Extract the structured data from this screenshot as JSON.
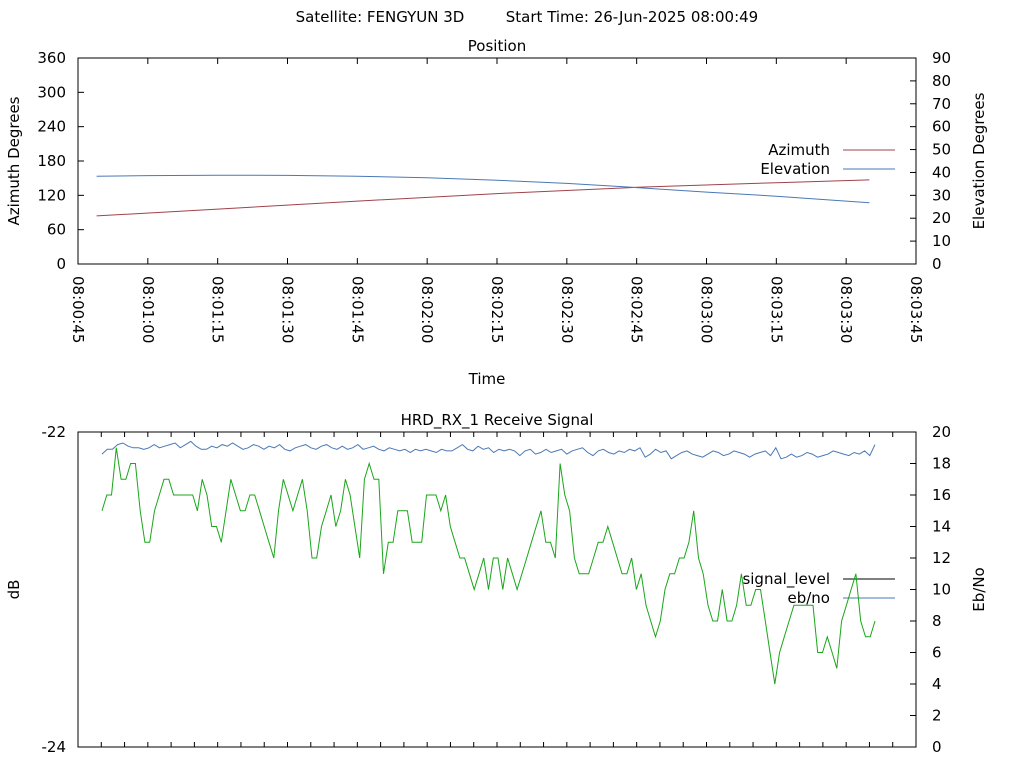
{
  "header": {
    "satellite": "Satellite: FENGYUN 3D",
    "start_time": "Start Time: 26-Jun-2025 08:00:49"
  },
  "chart_data": [
    {
      "type": "line",
      "title": "Position",
      "xlabel": "Time",
      "ylabel": "Azimuth Degrees",
      "y2label": "Elevation Degrees",
      "x_ticks": [
        "08:00:45",
        "08:01:00",
        "08:01:15",
        "08:01:30",
        "08:01:45",
        "08:02:00",
        "08:02:15",
        "08:02:30",
        "08:02:45",
        "08:03:00",
        "08:03:15",
        "08:03:30",
        "08:03:45"
      ],
      "x_range": [
        "08:00:45",
        "08:03:45"
      ],
      "ylim": [
        0,
        360
      ],
      "y_ticks": [
        0,
        60,
        120,
        180,
        240,
        300,
        360
      ],
      "y2lim": [
        0,
        90
      ],
      "y2_ticks": [
        0,
        10,
        20,
        30,
        40,
        50,
        60,
        70,
        80,
        90
      ],
      "legend_position": "right",
      "series": [
        {
          "name": "Azimuth",
          "axis": "left",
          "color": "#a0424b",
          "x": [
            "08:00:49",
            "08:01:15",
            "08:01:45",
            "08:02:15",
            "08:02:45",
            "08:03:15",
            "08:03:35"
          ],
          "values": [
            84,
            96,
            110,
            123,
            134,
            142,
            147
          ]
        },
        {
          "name": "Elevation",
          "axis": "right",
          "color": "#4a78b6",
          "x": [
            "08:00:49",
            "08:01:00",
            "08:01:15",
            "08:01:30",
            "08:01:45",
            "08:02:00",
            "08:02:15",
            "08:02:30",
            "08:02:45",
            "08:03:00",
            "08:03:15",
            "08:03:35"
          ],
          "values": [
            38.3,
            38.6,
            38.8,
            38.7,
            38.3,
            37.7,
            36.6,
            35.2,
            33.4,
            31.4,
            29.6,
            26.8
          ]
        }
      ]
    },
    {
      "type": "line",
      "title": "HRD_RX_1 Receive Signal",
      "ylabel": "dB",
      "y2label": "Eb/No",
      "ylim": [
        -24,
        -22
      ],
      "y_ticks": [
        -24,
        -22
      ],
      "y2lim": [
        0,
        20
      ],
      "y2_ticks": [
        0,
        2,
        4,
        6,
        8,
        10,
        12,
        14,
        16,
        18,
        20
      ],
      "x_minor_ticks": 36,
      "legend_position": "right",
      "series": [
        {
          "name": "signal_level",
          "axis": "left",
          "color": "#000000",
          "legend_only": true,
          "values": []
        },
        {
          "name": "eb/no",
          "axis": "right",
          "color": "#4a78b6",
          "values": [
            18.6,
            18.9,
            18.9,
            19.2,
            19.3,
            19.1,
            19.0,
            19.0,
            18.9,
            19.0,
            19.2,
            19.0,
            19.1,
            19.2,
            19.3,
            19.0,
            19.2,
            19.4,
            19.1,
            18.9,
            18.9,
            19.1,
            19.0,
            19.2,
            19.1,
            19.3,
            19.1,
            18.9,
            19.0,
            19.2,
            19.1,
            18.9,
            19.1,
            19.0,
            19.2,
            18.9,
            18.8,
            19.0,
            19.1,
            19.2,
            19.0,
            18.9,
            19.1,
            19.2,
            19.0,
            18.9,
            19.1,
            18.9,
            19.0,
            19.2,
            18.9,
            19.0,
            19.1,
            18.9,
            18.8,
            19.0,
            18.9,
            18.8,
            18.9,
            18.7,
            18.9,
            18.8,
            18.9,
            18.8,
            18.7,
            18.9,
            18.8,
            18.8,
            19.0,
            19.2,
            18.9,
            18.8,
            19.1,
            18.9,
            19.0,
            18.7,
            18.9,
            18.8,
            18.9,
            18.8,
            18.5,
            18.8,
            18.9,
            18.6,
            18.7,
            18.9,
            18.7,
            18.8,
            18.9,
            18.6,
            18.8,
            18.9,
            19.0,
            18.7,
            18.5,
            18.8,
            18.9,
            18.7,
            18.6,
            18.8,
            18.7,
            18.9,
            18.8,
            19.0,
            18.4,
            18.6,
            18.9,
            18.7,
            18.8,
            18.3,
            18.5,
            18.7,
            18.8,
            18.6,
            18.5,
            18.4,
            18.6,
            18.8,
            18.7,
            18.5,
            18.6,
            18.8,
            18.7,
            18.6,
            18.4,
            18.6,
            18.7,
            18.8,
            18.5,
            19.0,
            18.3,
            18.4,
            18.6,
            18.4,
            18.5,
            18.7,
            18.6,
            18.4,
            18.5,
            18.6,
            18.8,
            18.7,
            18.6,
            18.5,
            18.7,
            18.6,
            18.8,
            18.5,
            19.2
          ]
        },
        {
          "name": "",
          "axis": "right",
          "color": "#1aa61a",
          "values": [
            15,
            16,
            16,
            19,
            17,
            17,
            18,
            18,
            15,
            13,
            13,
            15,
            16,
            17,
            17,
            16,
            16,
            16,
            16,
            16,
            15,
            17,
            16,
            14,
            14,
            13,
            15,
            17,
            16,
            15,
            15,
            16,
            16,
            15,
            14,
            13,
            12,
            15,
            17,
            16,
            15,
            16,
            17,
            15,
            12,
            12,
            14,
            15,
            16,
            14,
            15,
            17,
            16,
            14,
            12,
            17,
            18,
            17,
            17,
            11,
            13,
            13,
            15,
            15,
            15,
            13,
            13,
            13,
            16,
            16,
            16,
            15,
            16,
            14,
            13,
            12,
            12,
            11,
            10,
            11,
            12,
            10,
            12,
            12,
            10,
            12,
            11,
            10,
            11,
            12,
            13,
            14,
            15,
            13,
            13,
            12,
            18,
            16,
            15,
            12,
            11,
            11,
            11,
            12,
            13,
            13,
            14,
            13,
            12,
            11,
            11,
            12,
            10,
            11,
            9,
            8,
            7,
            8,
            10,
            11,
            11,
            12,
            12,
            13,
            15,
            12,
            11,
            9,
            8,
            8,
            10,
            8,
            8,
            9,
            11,
            9,
            9,
            10,
            10,
            8,
            6,
            4,
            6,
            7,
            8,
            9,
            9,
            9,
            9,
            9,
            6,
            6,
            7,
            6,
            5,
            8,
            9,
            10,
            11,
            8,
            7,
            7,
            8
          ]
        }
      ]
    }
  ]
}
